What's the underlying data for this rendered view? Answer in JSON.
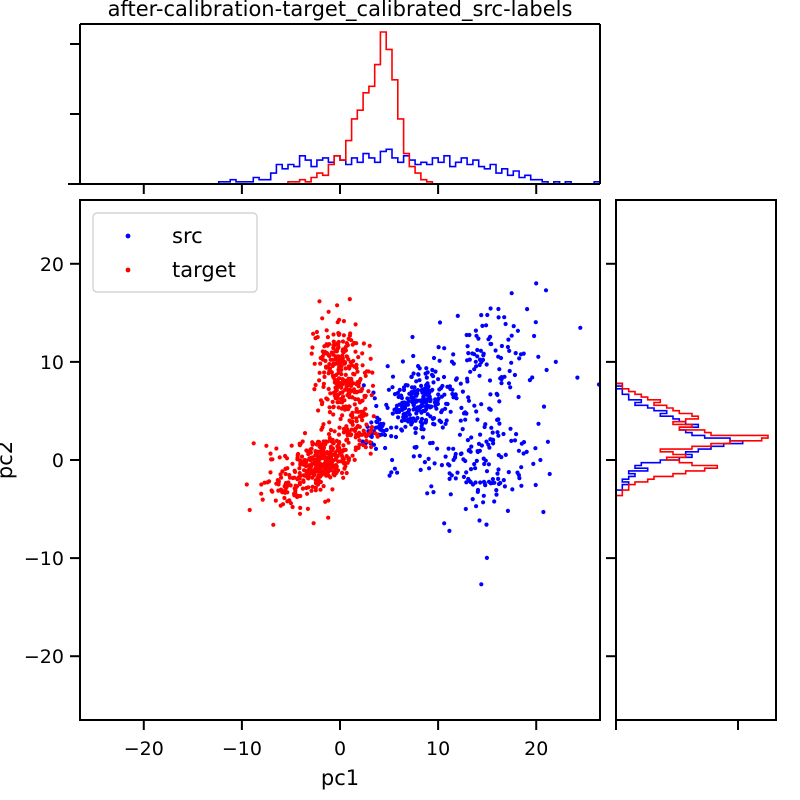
{
  "chart_data": {
    "type": "scatter",
    "title": "after-calibration-target_calibrated_src-labels",
    "xlabel": "pc1",
    "ylabel": "pc2",
    "xlim": [
      -26.5,
      26.5
    ],
    "ylim": [
      -26.5,
      26.5
    ],
    "xticks": [
      -20,
      -10,
      0,
      10,
      20
    ],
    "yticks": [
      -20,
      -10,
      0,
      10,
      20
    ],
    "grid": false,
    "legend": {
      "placement": "top-left",
      "entries": [
        "src",
        "target"
      ]
    },
    "series": [
      {
        "name": "src",
        "color": "#0000ff",
        "clusters": [
          {
            "cx": 8.0,
            "cy": 6.0,
            "sx": 2.0,
            "sy": 1.4,
            "rot": 0.5,
            "n": 230
          },
          {
            "cx": 15.0,
            "cy": 10.0,
            "sx": 3.2,
            "sy": 2.8,
            "rot": 0.4,
            "n": 110
          },
          {
            "cx": 14.0,
            "cy": -0.5,
            "sx": 3.6,
            "sy": 3.0,
            "rot": 0.1,
            "n": 160
          },
          {
            "cx": 3.5,
            "cy": 2.8,
            "sx": 1.0,
            "sy": 0.8,
            "rot": 0.5,
            "n": 40
          }
        ],
        "points": [
          [
            24.2,
            8.4
          ],
          [
            26.4,
            7.7
          ],
          [
            22.0,
            10.0
          ],
          [
            21.0,
            17.3
          ],
          [
            20.0,
            18.0
          ],
          [
            17.5,
            17.0
          ]
        ],
        "hist_x": [
          0,
          0,
          0,
          0,
          0,
          0,
          0,
          0,
          0,
          0,
          0,
          0,
          0,
          0,
          0,
          0,
          0,
          0,
          0,
          0,
          0,
          0,
          0,
          0,
          1,
          1,
          2,
          1,
          1,
          1,
          3,
          2,
          2,
          5,
          9,
          7,
          9,
          8,
          13,
          11,
          8,
          11,
          12,
          10,
          13,
          11,
          9,
          12,
          10,
          14,
          12,
          10,
          15,
          16,
          12,
          10,
          13,
          11,
          9,
          10,
          9,
          12,
          10,
          13,
          8,
          10,
          12,
          9,
          11,
          8,
          7,
          9,
          5,
          7,
          4,
          6,
          3,
          4,
          2,
          2,
          1,
          0,
          1,
          0,
          1,
          0,
          0,
          0,
          0,
          1
        ],
        "hist_y": [
          0,
          0,
          0,
          0,
          0,
          0,
          0,
          0,
          0,
          0,
          0,
          0,
          0,
          0,
          0,
          0,
          0,
          0,
          0,
          0,
          0,
          0,
          0,
          0,
          0,
          0,
          0,
          0,
          0,
          0,
          0,
          0,
          0,
          0,
          0,
          0,
          0,
          0,
          0,
          0,
          0,
          0,
          0,
          0,
          0,
          0,
          0,
          0,
          0,
          0,
          0,
          0,
          0,
          0,
          0,
          0,
          0,
          0,
          0,
          0,
          0,
          0,
          0,
          0,
          0,
          0,
          0,
          0,
          0,
          0,
          0,
          0,
          0,
          0,
          0,
          0,
          0,
          0,
          0,
          0,
          0,
          0,
          0,
          0,
          1,
          1,
          2,
          1,
          2,
          3,
          2,
          5,
          3,
          4,
          7,
          10,
          12,
          11,
          13,
          15,
          17,
          20,
          18,
          14,
          12,
          11,
          10,
          13,
          11,
          10,
          9,
          7,
          8,
          6,
          5,
          3,
          4,
          2,
          2,
          1,
          1,
          0,
          1,
          0,
          0,
          0,
          0,
          0,
          0,
          0,
          0,
          0,
          0,
          0,
          0,
          0,
          0,
          0,
          0,
          0,
          0,
          0,
          0,
          0,
          0,
          0,
          0,
          0,
          0,
          0,
          0,
          0,
          0,
          0,
          0,
          0,
          0,
          0,
          0,
          0,
          0,
          0,
          0,
          0,
          0,
          0,
          0,
          0,
          0,
          0,
          0,
          0,
          0,
          0,
          0,
          0,
          0,
          0,
          0,
          0,
          0,
          0,
          0,
          0,
          0,
          0,
          0,
          0,
          0,
          0
        ]
      },
      {
        "name": "target",
        "color": "#ff0000",
        "clusters": [
          {
            "cx": 0.2,
            "cy": 8.5,
            "sx": 1.2,
            "sy": 2.8,
            "rot": 0.15,
            "n": 300
          },
          {
            "cx": -1.5,
            "cy": 0.0,
            "sx": 1.3,
            "sy": 1.1,
            "rot": 0.4,
            "n": 260
          },
          {
            "cx": -4.5,
            "cy": -2.0,
            "sx": 1.6,
            "sy": 1.6,
            "rot": 0.6,
            "n": 130
          },
          {
            "cx": 2.0,
            "cy": 3.0,
            "sx": 0.8,
            "sy": 1.2,
            "rot": 0.5,
            "n": 50
          }
        ],
        "points": [
          [
            1.0,
            16.4
          ],
          [
            -9.2,
            -5.1
          ],
          [
            -8.8,
            1.7
          ],
          [
            -6.8,
            -6.6
          ],
          [
            -9.5,
            -2.5
          ]
        ],
        "hist_x": [
          0,
          0,
          0,
          0,
          0,
          0,
          0,
          0,
          0,
          0,
          0,
          0,
          0,
          0,
          0,
          0,
          0,
          0,
          0,
          0,
          0,
          0,
          0,
          0,
          0,
          0,
          0,
          0,
          0,
          0,
          0,
          0,
          0,
          0,
          0,
          0,
          1,
          1,
          2,
          1,
          3,
          5,
          4,
          9,
          13,
          11,
          20,
          30,
          34,
          42,
          45,
          55,
          70,
          62,
          48,
          30,
          14,
          8,
          5,
          2,
          1,
          0,
          0,
          0,
          0,
          0,
          0,
          0,
          0,
          0,
          0,
          0,
          0,
          0,
          0,
          0,
          0,
          0,
          0,
          0,
          0,
          0,
          0,
          0,
          0,
          0,
          0,
          0,
          0,
          0
        ],
        "hist_y": [
          0,
          0,
          0,
          0,
          0,
          0,
          0,
          0,
          0,
          0,
          0,
          0,
          0,
          0,
          0,
          0,
          0,
          0,
          0,
          0,
          0,
          0,
          0,
          0,
          0,
          0,
          0,
          0,
          0,
          0,
          0,
          0,
          0,
          0,
          0,
          0,
          0,
          0,
          0,
          0,
          0,
          0,
          0,
          0,
          0,
          0,
          0,
          0,
          0,
          0,
          0,
          0,
          0,
          0,
          0,
          0,
          0,
          0,
          0,
          0,
          0,
          0,
          0,
          0,
          0,
          0,
          0,
          0,
          0,
          0,
          0,
          0,
          0,
          0,
          0,
          0,
          0,
          0,
          0,
          0,
          0,
          0,
          1,
          1,
          2,
          2,
          3,
          5,
          6,
          9,
          11,
          14,
          16,
          12,
          10,
          8,
          11,
          9,
          7,
          12,
          15,
          18,
          23,
          24,
          15,
          14,
          10,
          12,
          9,
          11,
          13,
          12,
          10,
          9,
          8,
          6,
          7,
          5,
          4,
          3,
          2,
          1,
          1,
          0,
          0,
          0,
          0,
          0,
          0,
          0,
          0,
          0,
          0,
          0,
          0,
          0,
          0,
          0,
          0,
          0,
          0,
          0,
          0,
          0,
          0,
          0,
          0,
          0,
          0,
          0,
          0,
          0,
          0,
          0,
          0,
          0,
          0,
          0,
          0,
          0,
          0,
          0,
          0,
          0,
          0,
          0,
          0,
          0,
          0,
          0,
          0,
          0,
          0,
          0,
          0,
          0,
          0,
          0,
          0,
          0,
          0,
          0,
          0,
          0,
          0,
          0,
          0,
          0,
          0,
          0
        ]
      }
    ]
  }
}
